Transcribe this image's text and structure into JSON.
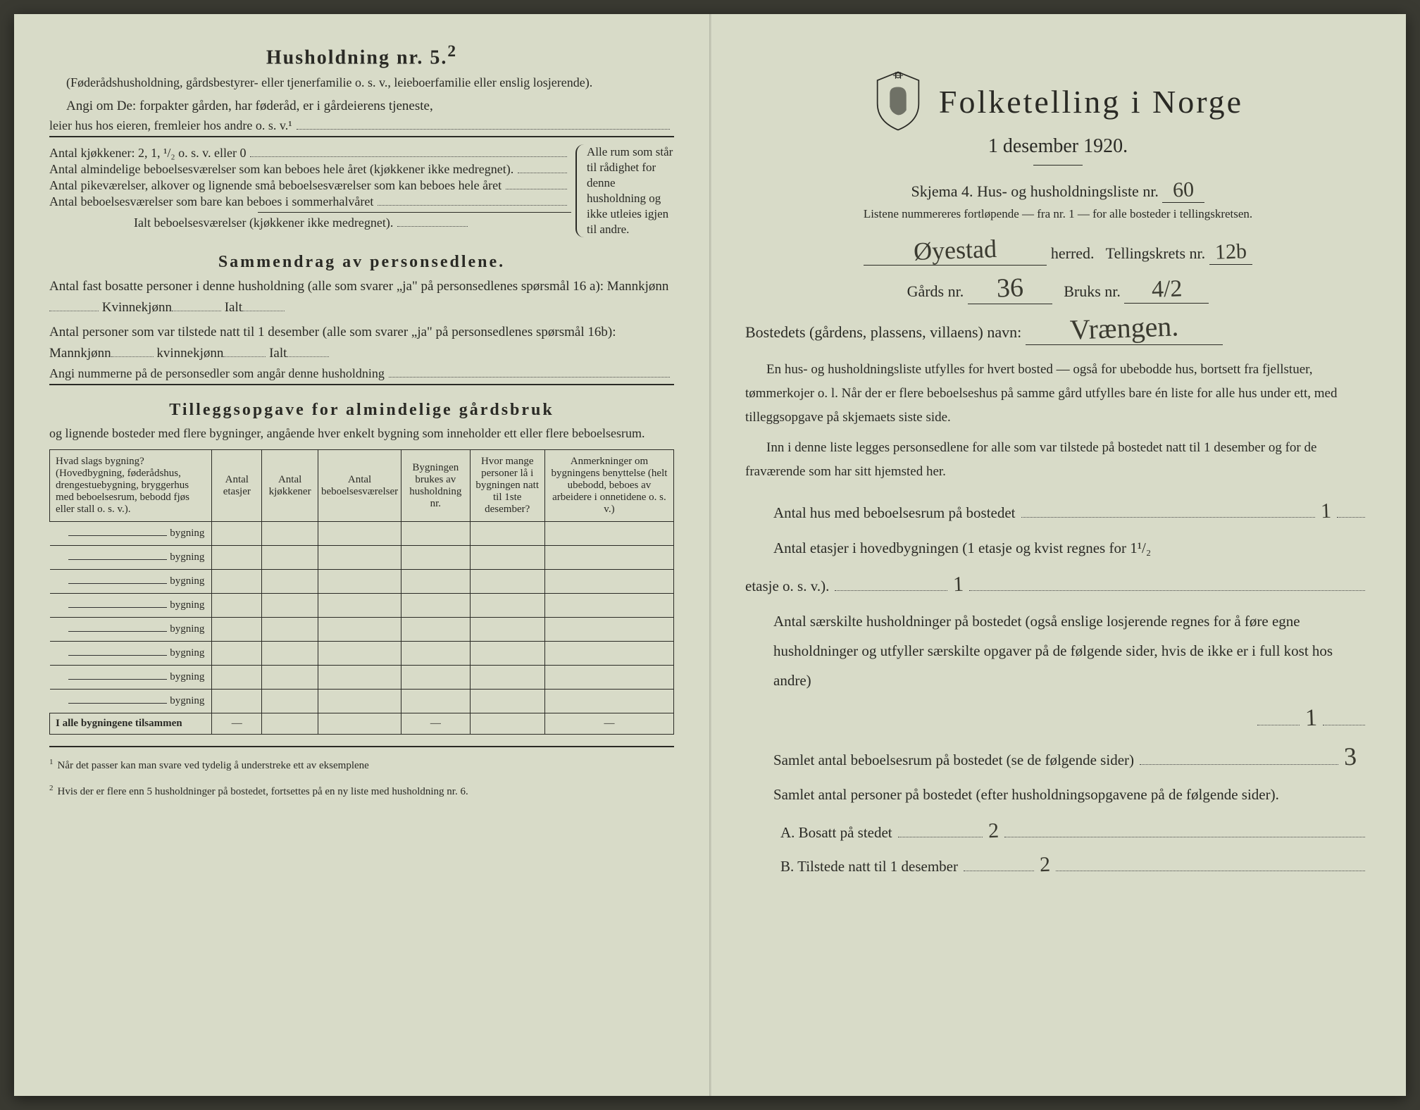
{
  "left": {
    "household_heading": "Husholdning nr. 5.",
    "household_sup": "2",
    "household_note": "(Føderådshusholdning, gårdsbestyrer- eller tjenerfamilie o. s. v., leieboerfamilie eller enslig losjerende).",
    "angi_line1": "Angi om De:  forpakter gården, har føderåd, er i gårdeierens tjeneste,",
    "angi_line2": "leier hus hos eieren, fremleier hos andre o. s. v.¹",
    "kitchen_line": "Antal kjøkkener: 2, 1, ¹/₂ o. s. v. eller 0",
    "rooms1": "Antal almindelige beboelsesværelser som kan beboes hele året (kjøkkener ikke medregnet).",
    "rooms2": "Antal pikeværelser, alkover og lignende små beboelsesværelser som kan beboes hele året",
    "rooms3": "Antal beboelsesværelser som bare kan beboes i sommerhalvåret",
    "rooms_total": "Ialt beboelsesværelser (kjøkkener ikke medregnet).",
    "brace_text": "Alle rum som står til rådighet for denne husholdning og ikke utleies igjen til andre.",
    "summary_title": "Sammendrag av personsedlene.",
    "summary_p1a": "Antal fast bosatte personer i denne husholdning (alle som svarer „ja\" på personsedlenes spørsmål 16 a): Mannkjønn",
    "summary_kv": "Kvinnekjønn",
    "summary_ialt": "Ialt",
    "summary_p2a": "Antal personer som var tilstede natt til 1 desember (alle som svarer „ja\" på personsedlenes spørsmål 16b): Mannkjønn",
    "summary_kv2": "kvinnekjønn",
    "summary_angi": "Angi nummerne på de personsedler som angår denne husholdning",
    "tillegg_title": "Tilleggsopgave for almindelige gårdsbruk",
    "tillegg_sub": "og lignende bosteder med flere bygninger, angående hver enkelt bygning som inneholder ett eller flere beboelsesrum.",
    "table": {
      "th1": "Hvad slags bygning?\n(Hovedbygning, føderådshus, drengestuebygning, bryggerhus med beboelsesrum, bebodd fjøs eller stall o. s. v.).",
      "th2": "Antal etasjer",
      "th3": "Antal kjøkkener",
      "th4": "Antal beboelsesværelser",
      "th5": "Bygningen brukes av husholdning nr.",
      "th6": "Hvor mange personer lå i bygningen natt til 1ste desember?",
      "th7": "Anmerkninger om bygningens benyttelse (helt ubebodd, beboes av arbeidere i onnetidene o. s. v.)",
      "row_label": "bygning",
      "footer": "I alle bygningene tilsammen"
    },
    "footnote1": "Når det passer kan man svare ved tydelig å understreke ett av eksemplene",
    "footnote2": "Hvis der er flere enn 5 husholdninger på bostedet, fortsettes på en ny liste med husholdning nr. 6."
  },
  "right": {
    "title": "Folketelling i Norge",
    "date": "1 desember 1920.",
    "skjema": "Skjema 4.  Hus- og husholdningsliste nr.",
    "skjema_val": "60",
    "list_note": "Listene nummereres fortløpende — fra nr. 1 — for alle bosteder i tellingskretsen.",
    "herred_val": "Øyestad",
    "herred_label": "herred.",
    "krets_label": "Tellingskrets nr.",
    "krets_val": "12b",
    "gards_label": "Gårds nr.",
    "gards_val": "36",
    "bruks_label": "Bruks nr.",
    "bruks_val": "4/2",
    "bosted_label": "Bostedets (gårdens, plassens, villaens) navn:",
    "bosted_val": "Vrængen.",
    "body_p1": "En hus- og husholdningsliste utfylles for hvert bosted — også for ubebodde hus, bortsett fra fjellstuer, tømmerkojer o. l.  Når der er flere beboelseshus på samme gård utfylles bare én liste for alle hus under ett, med tilleggsopgave på skjemaets siste side.",
    "body_p2": "Inn i denne liste legges personsedlene for alle som var tilstede på bostedet natt til 1 desember og for de fraværende som har sitt hjemsted her.",
    "q1": "Antal hus med beboelsesrum på bostedet",
    "q1_val": "1",
    "q2a": "Antal etasjer i hovedbygningen (1 etasje og kvist regnes for 1¹/₂",
    "q2b": "etasje o. s. v.).",
    "q2_val": "1",
    "q3": "Antal særskilte husholdninger på bostedet (også enslige losjerende regnes for å føre egne husholdninger og utfyller særskilte opgaver på de følgende sider, hvis de ikke er i full kost hos andre)",
    "q3_val": "1",
    "q4": "Samlet antal beboelsesrum på bostedet (se de følgende sider)",
    "q4_val": "3",
    "q5": "Samlet antal personer på bostedet (efter husholdningsopgavene på de følgende sider).",
    "qA": "A.  Bosatt på stedet",
    "qA_val": "2",
    "qB": "B.  Tilstede natt til 1 desember",
    "qB_val": "2"
  },
  "colors": {
    "paper": "#d8dbc8",
    "ink": "#2a2a25",
    "handwriting": "#3a3a30"
  }
}
